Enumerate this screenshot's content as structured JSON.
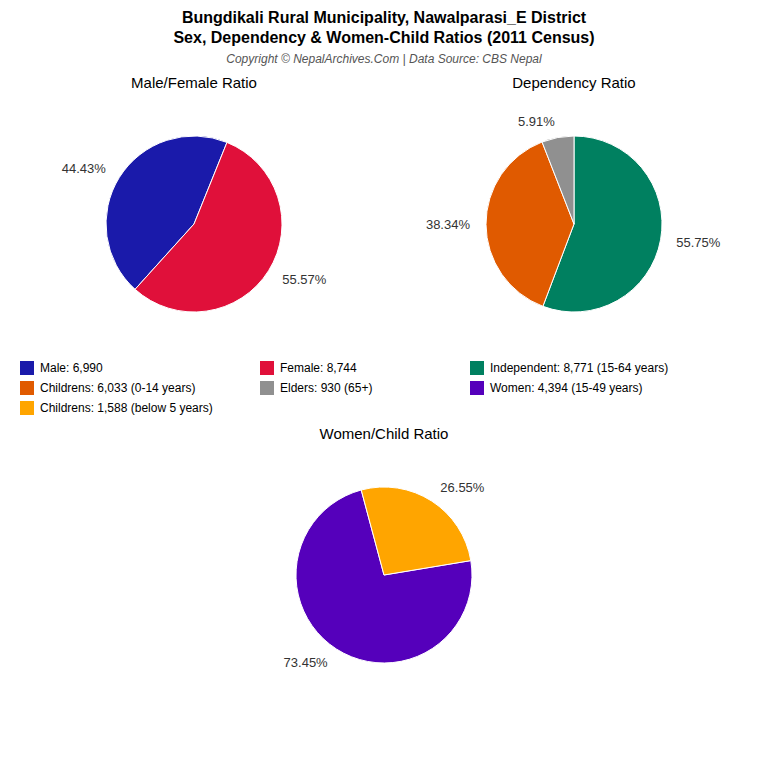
{
  "title": "Bungdikali Rural Municipality, Nawalparasi_E District",
  "subtitle": "Sex, Dependency & Women-Child Ratios (2011 Census)",
  "annotations": [
    "Copyright © NepalArchives.Com | Data Source: CBS Nepal"
  ],
  "chart_data": [
    {
      "type": "pie",
      "title": "Male/Female Ratio",
      "categories": [
        "Male: 6,990",
        "Female: 8,744"
      ],
      "values": [
        44.43,
        55.57
      ],
      "value_labels": [
        "44.43%",
        "55.57%"
      ],
      "colors": [
        "#1a1aaa",
        "#e0103a"
      ],
      "data_labels": true,
      "legend": "bottom"
    },
    {
      "type": "pie",
      "title": "Dependency Ratio",
      "categories": [
        "Independent: 8,771 (15-64 years)",
        "Childrens: 6,033 (0-14 years)",
        "Elders: 930 (65+)"
      ],
      "values": [
        55.75,
        38.34,
        5.91
      ],
      "value_labels": [
        "55.75%",
        "38.34%",
        "5.91%"
      ],
      "colors": [
        "#008060",
        "#e05a00",
        "#909090"
      ],
      "data_labels": true,
      "legend": "bottom"
    },
    {
      "type": "pie",
      "title": "Women/Child Ratio",
      "categories": [
        "Women: 4,394 (15-49 years)",
        "Childrens: 1,588 (below 5 years)"
      ],
      "values": [
        73.45,
        26.55
      ],
      "value_labels": [
        "73.45%",
        "26.55%"
      ],
      "colors": [
        "#5500bb",
        "#FFA500"
      ],
      "data_labels": true,
      "legend": "top"
    }
  ]
}
